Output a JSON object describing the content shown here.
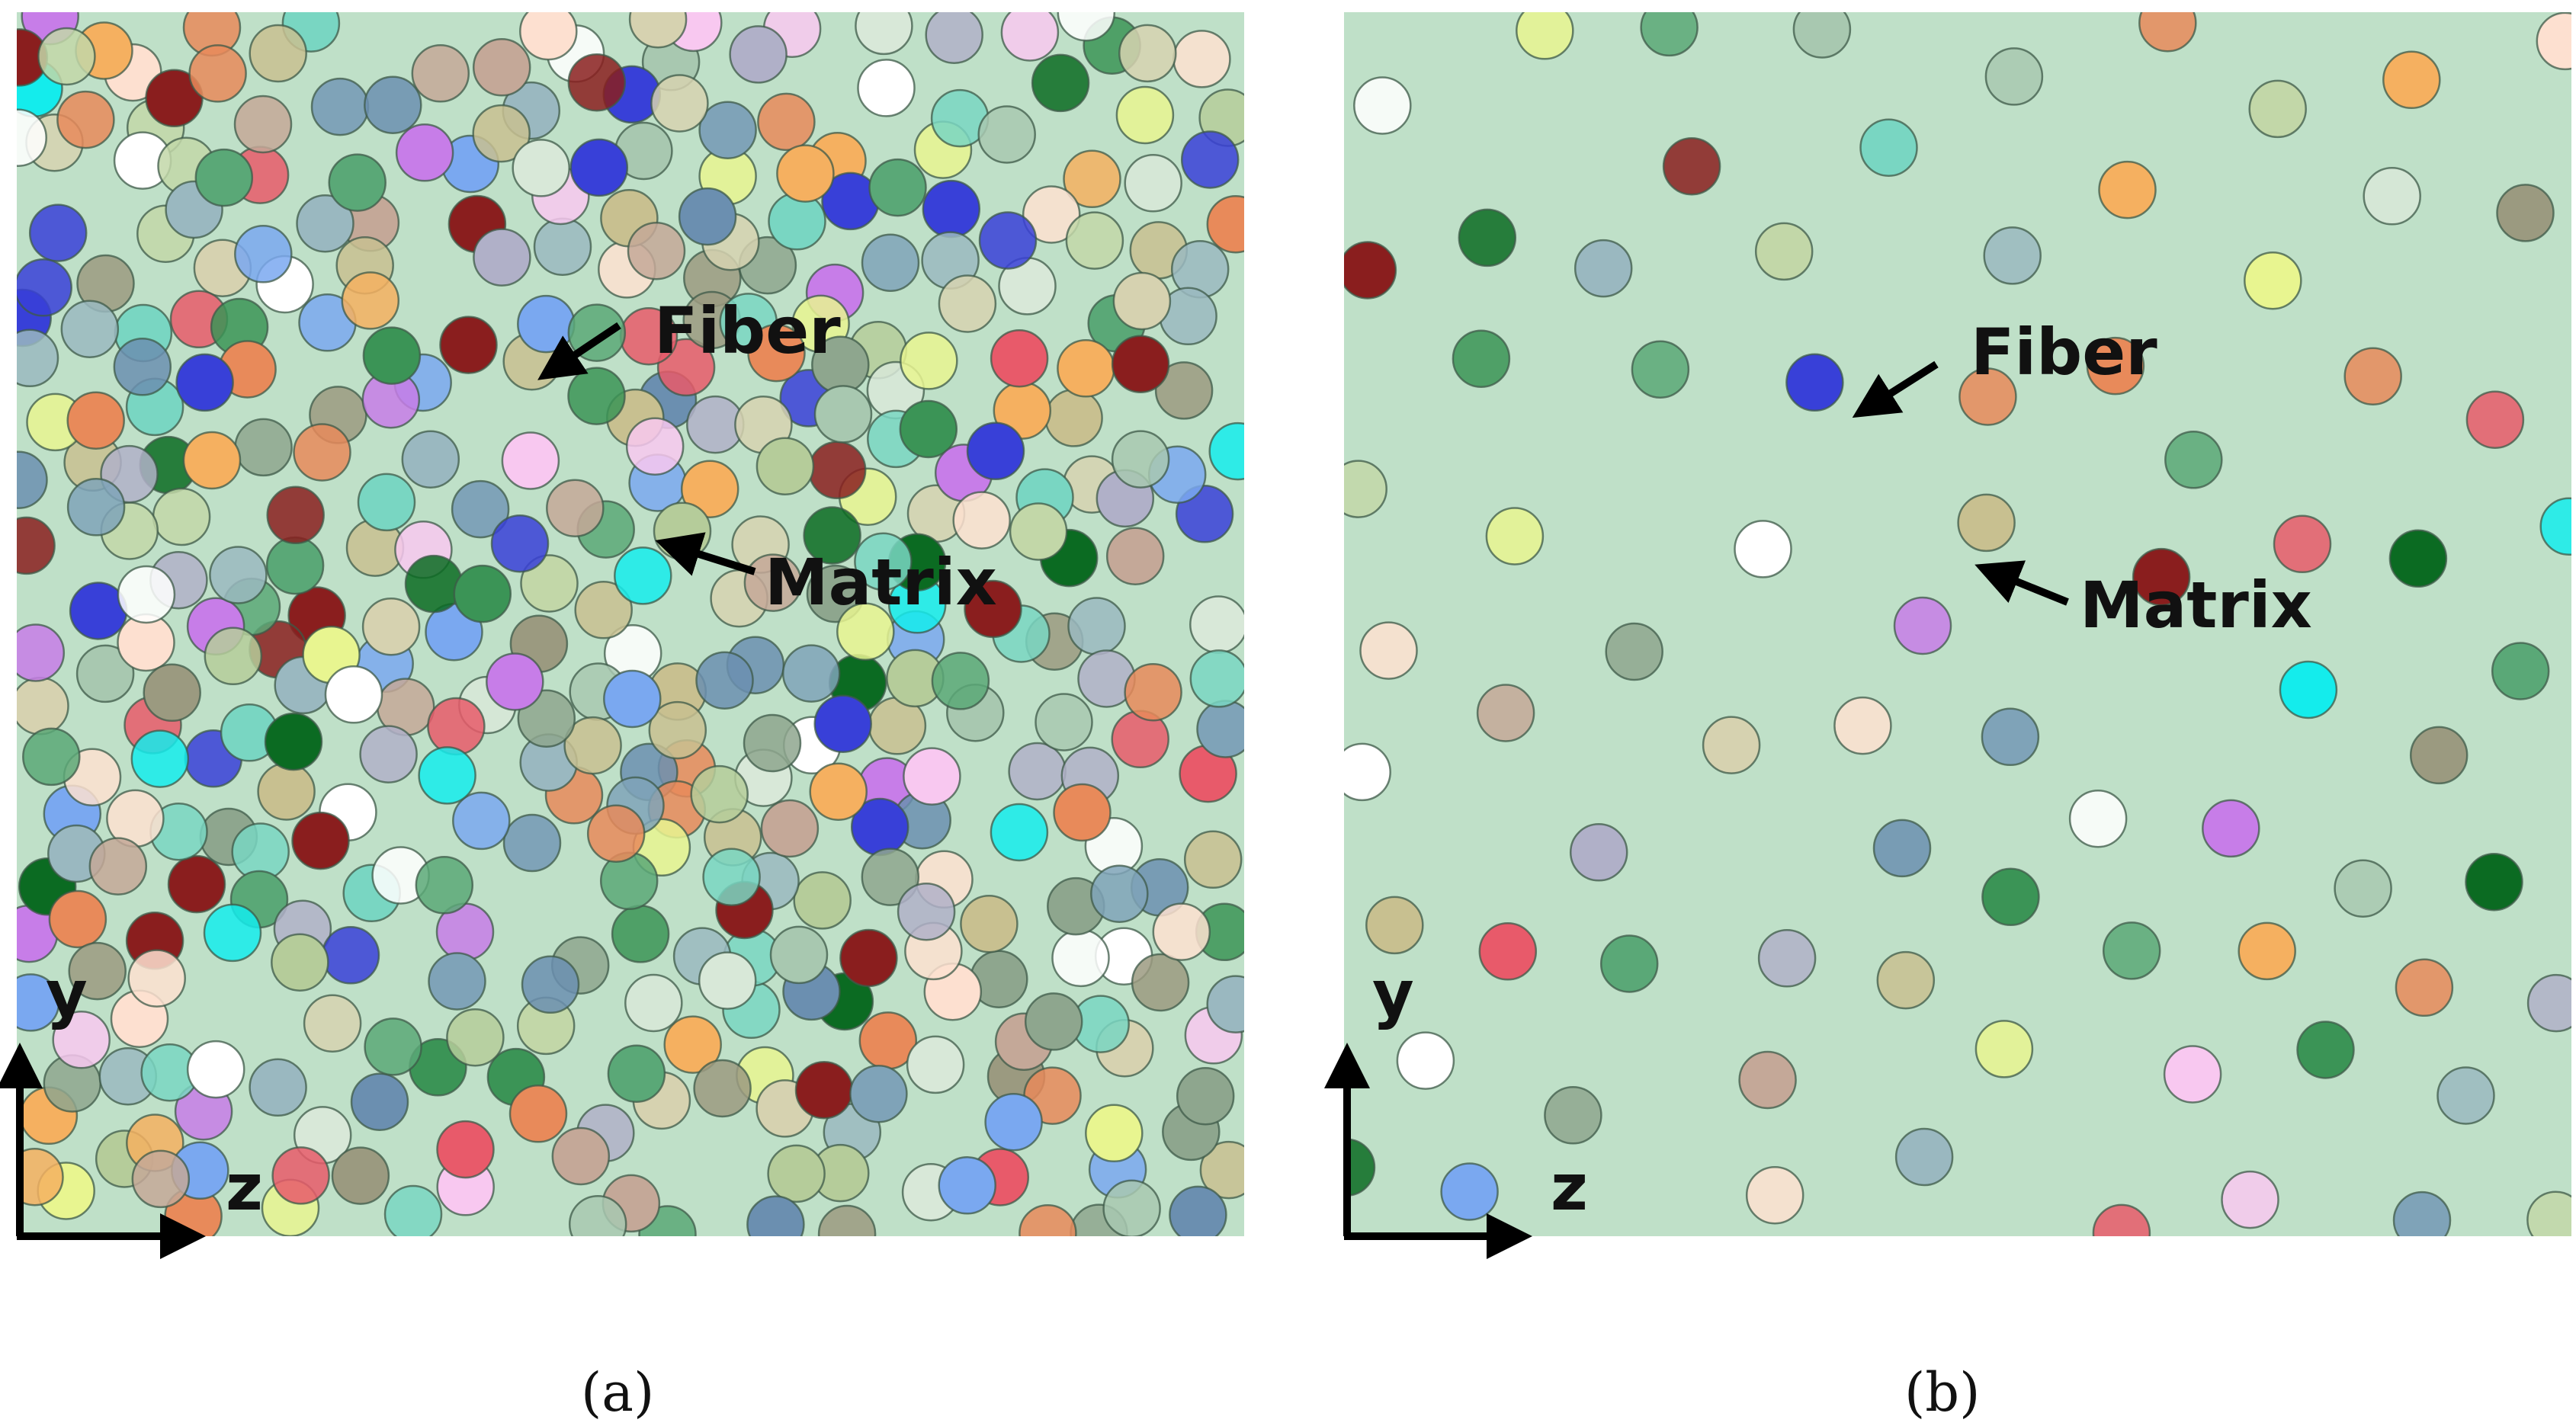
{
  "panels": [
    {
      "id": "a",
      "caption": "(a)",
      "fiber_label": "Fiber",
      "matrix_label": "Matrix",
      "axis_vertical": "y",
      "axis_horizontal": "z"
    },
    {
      "id": "b",
      "caption": "(b)",
      "fiber_label": "Fiber",
      "matrix_label": "Matrix",
      "axis_vertical": "y",
      "axis_horizontal": "z"
    }
  ],
  "colors": {
    "matrix": "#bfe0c8",
    "fiber_palette": [
      "#a8c8b0",
      "#c2d7a8",
      "#b5cc9a",
      "#8ea68e",
      "#9b9a80",
      "#7fa3b8",
      "#6b8fb0",
      "#b0b0c8",
      "#c4a898",
      "#c8c090",
      "#d6d2b0",
      "#79d6c2",
      "#5aa877",
      "#3b9456",
      "#0b6b22",
      "#8a1e1e",
      "#e85a6a",
      "#e88a5a",
      "#f5b060",
      "#ffffff",
      "#fde0d0",
      "#f8c8f0",
      "#c77de8",
      "#e8f590",
      "#14ecec",
      "#7aa8f0",
      "#3840d8",
      "#9ab8c0",
      "#d8e8d8"
    ]
  }
}
